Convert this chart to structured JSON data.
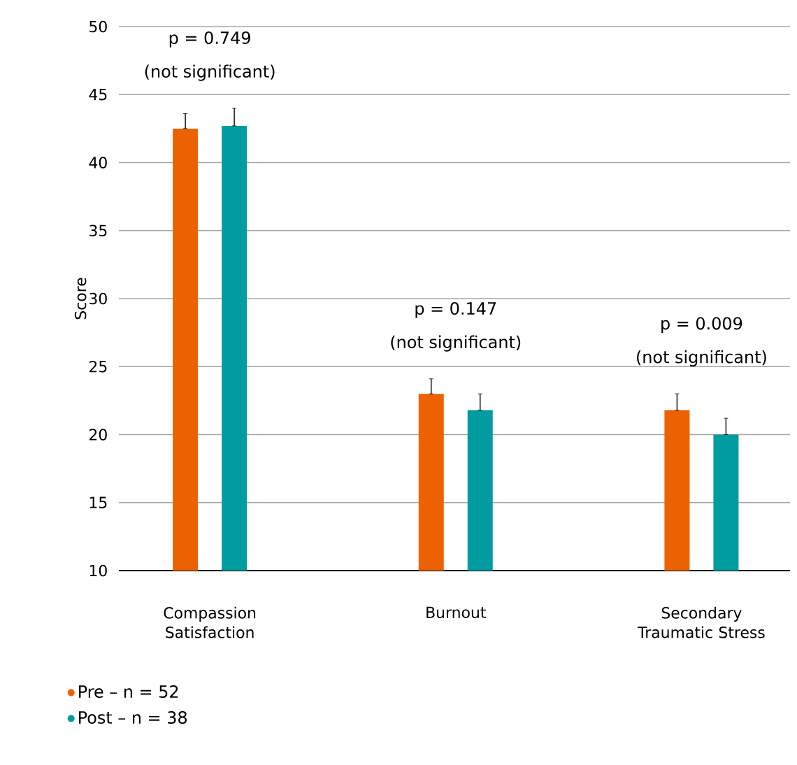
{
  "chart_data": {
    "type": "bar",
    "ylabel": "Score",
    "categories": [
      "Compassion Satisfaction",
      "Burnout",
      "Secondary Traumatic Stress"
    ],
    "series": [
      {
        "name": "Pre – n = 52",
        "color": "#ec6200",
        "values": [
          42.5,
          23.0,
          21.8
        ],
        "errors": [
          [
            42.5,
            43.6
          ],
          [
            23.0,
            24.1
          ],
          [
            21.8,
            23.0
          ]
        ]
      },
      {
        "name": "Post – n = 38",
        "color": "#009ca0",
        "values": [
          42.7,
          21.8,
          20.0
        ],
        "errors": [
          [
            42.7,
            44.0
          ],
          [
            21.8,
            23.0
          ],
          [
            20.0,
            21.2
          ]
        ]
      }
    ],
    "ylim": [
      10,
      50
    ],
    "yticks": [
      10,
      15,
      20,
      25,
      30,
      35,
      40,
      45,
      50
    ],
    "grid": "y",
    "legend": "bottom left",
    "annotations": [
      "p = 0.749",
      "(not significant)",
      "p = 0.147",
      "(not significant)",
      "p = 0.009",
      "(not significant)"
    ]
  }
}
